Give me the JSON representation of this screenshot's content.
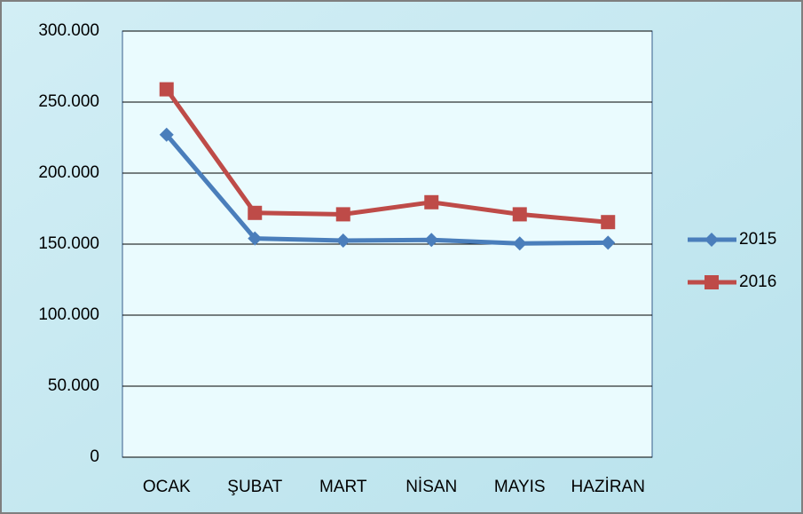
{
  "chart_data": {
    "type": "line",
    "categories": [
      "OCAK",
      "ŞUBAT",
      "MART",
      "NİSAN",
      "MAYIS",
      "HAZİRAN"
    ],
    "series": [
      {
        "name": "2015",
        "color": "#4a7ebb",
        "marker": "diamond",
        "values": [
          227000,
          154000,
          152500,
          153000,
          150500,
          151000
        ]
      },
      {
        "name": "2016",
        "color": "#be4b48",
        "marker": "square",
        "values": [
          259000,
          172000,
          171000,
          179500,
          171000,
          165500
        ]
      }
    ],
    "ylim": [
      0,
      300000
    ],
    "yticks": [
      0,
      {
        "value": 50000,
        "label": "50.000"
      },
      {
        "value": 100000,
        "label": "100.000"
      },
      {
        "value": 150000,
        "label": "150.000"
      },
      {
        "value": 200000,
        "label": "200.000"
      },
      {
        "value": 250000,
        "label": "250.000"
      },
      {
        "value": 300000,
        "label": "300.000"
      }
    ],
    "grid": true,
    "legend": "right"
  }
}
